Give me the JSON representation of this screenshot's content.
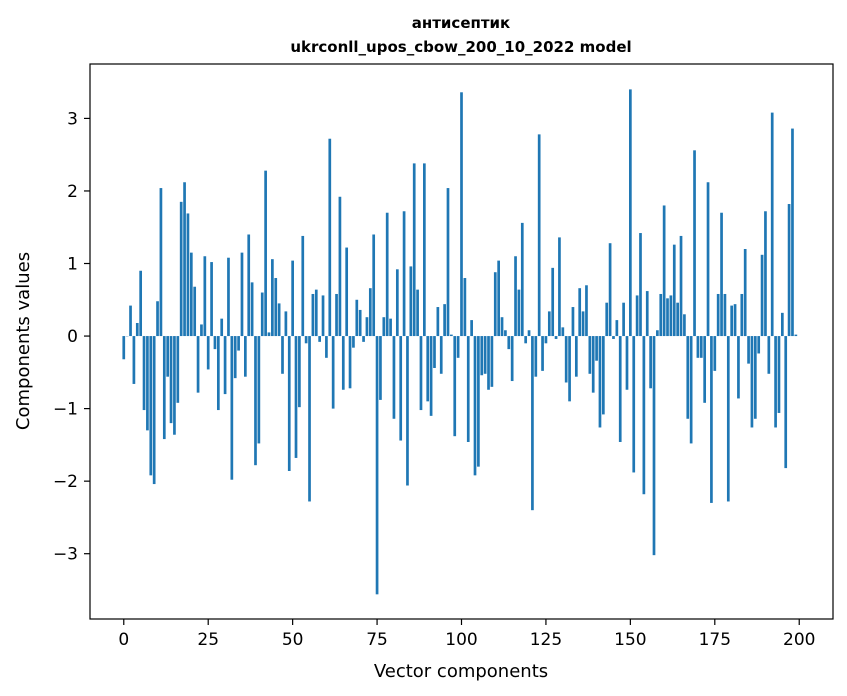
{
  "chart_data": {
    "type": "bar",
    "title": "антисептик",
    "subtitle": "ukrconll_upos_cbow_200_10_2022 model",
    "xlabel": "Vector components",
    "ylabel": "Components values",
    "xlim": [
      -10,
      210
    ],
    "ylim": [
      -3.9,
      3.75
    ],
    "xticks": [
      0,
      25,
      50,
      75,
      100,
      125,
      150,
      175,
      200
    ],
    "xtick_labels": [
      "0",
      "25",
      "50",
      "75",
      "100",
      "125",
      "150",
      "175",
      "200"
    ],
    "yticks": [
      -3,
      -2,
      -1,
      0,
      1,
      2,
      3
    ],
    "ytick_labels": [
      "−3",
      "−2",
      "−1",
      "0",
      "1",
      "2",
      "3"
    ],
    "grid": false,
    "bar_color": "#1f77b4",
    "x": [
      0,
      1,
      2,
      3,
      4,
      5,
      6,
      7,
      8,
      9,
      10,
      11,
      12,
      13,
      14,
      15,
      16,
      17,
      18,
      19,
      20,
      21,
      22,
      23,
      24,
      25,
      26,
      27,
      28,
      29,
      30,
      31,
      32,
      33,
      34,
      35,
      36,
      37,
      38,
      39,
      40,
      41,
      42,
      43,
      44,
      45,
      46,
      47,
      48,
      49,
      50,
      51,
      52,
      53,
      54,
      55,
      56,
      57,
      58,
      59,
      60,
      61,
      62,
      63,
      64,
      65,
      66,
      67,
      68,
      69,
      70,
      71,
      72,
      73,
      74,
      75,
      76,
      77,
      78,
      79,
      80,
      81,
      82,
      83,
      84,
      85,
      86,
      87,
      88,
      89,
      90,
      91,
      92,
      93,
      94,
      95,
      96,
      97,
      98,
      99,
      100,
      101,
      102,
      103,
      104,
      105,
      106,
      107,
      108,
      109,
      110,
      111,
      112,
      113,
      114,
      115,
      116,
      117,
      118,
      119,
      120,
      121,
      122,
      123,
      124,
      125,
      126,
      127,
      128,
      129,
      130,
      131,
      132,
      133,
      134,
      135,
      136,
      137,
      138,
      139,
      140,
      141,
      142,
      143,
      144,
      145,
      146,
      147,
      148,
      149,
      150,
      151,
      152,
      153,
      154,
      155,
      156,
      157,
      158,
      159,
      160,
      161,
      162,
      163,
      164,
      165,
      166,
      167,
      168,
      169,
      170,
      171,
      172,
      173,
      174,
      175,
      176,
      177,
      178,
      179,
      180,
      181,
      182,
      183,
      184,
      185,
      186,
      187,
      188,
      189,
      190,
      191,
      192,
      193,
      194,
      195,
      196,
      197,
      198,
      199
    ],
    "values": [
      -0.32,
      0.0,
      0.42,
      -0.66,
      0.18,
      0.9,
      -1.02,
      -1.3,
      -1.92,
      -2.04,
      0.48,
      2.04,
      -1.42,
      -0.56,
      -1.2,
      -1.36,
      -0.92,
      1.85,
      2.12,
      1.69,
      1.15,
      0.68,
      -0.78,
      0.16,
      1.1,
      -0.46,
      1.02,
      -0.18,
      -1.02,
      0.24,
      -0.8,
      1.08,
      -1.98,
      -0.58,
      -0.2,
      1.15,
      -0.56,
      1.4,
      0.74,
      -1.78,
      -1.48,
      0.6,
      2.28,
      0.05,
      1.06,
      0.8,
      0.45,
      -0.52,
      0.34,
      -1.86,
      1.04,
      -1.68,
      -0.98,
      1.38,
      -0.1,
      -2.28,
      0.58,
      0.64,
      -0.08,
      0.56,
      -0.3,
      2.72,
      -1.0,
      0.58,
      1.92,
      -0.74,
      1.22,
      -0.72,
      -0.16,
      0.5,
      0.36,
      -0.08,
      0.26,
      0.66,
      1.4,
      -3.56,
      -0.88,
      0.26,
      1.7,
      0.24,
      -1.14,
      0.92,
      -1.44,
      1.72,
      -2.06,
      0.96,
      2.38,
      0.64,
      -1.02,
      2.38,
      -0.9,
      -1.1,
      -0.44,
      0.4,
      -0.52,
      0.44,
      2.04,
      0.02,
      -1.38,
      -0.3,
      3.36,
      0.8,
      -1.46,
      0.22,
      -1.92,
      -1.8,
      -0.54,
      -0.52,
      -0.74,
      -0.7,
      0.88,
      1.04,
      0.26,
      0.08,
      -0.18,
      -0.62,
      1.1,
      0.64,
      1.56,
      -0.1,
      0.08,
      -2.4,
      -0.56,
      2.78,
      -0.48,
      -0.1,
      0.34,
      0.94,
      -0.04,
      1.36,
      0.12,
      -0.64,
      -0.9,
      0.4,
      -0.56,
      0.66,
      0.34,
      0.7,
      -0.52,
      -0.78,
      -0.34,
      -1.26,
      -1.08,
      0.46,
      1.28,
      -0.04,
      0.22,
      -1.46,
      0.46,
      -0.74,
      3.4,
      -1.88,
      0.56,
      1.42,
      -2.18,
      0.62,
      -0.72,
      -3.02,
      0.08,
      0.58,
      1.8,
      0.52,
      0.56,
      1.26,
      0.46,
      1.38,
      0.3,
      -1.14,
      -1.48,
      2.56,
      -0.3,
      -0.3,
      -0.92,
      2.12,
      -2.3,
      -0.48,
      0.58,
      1.7,
      0.58,
      -2.28,
      0.42,
      0.44,
      -0.86,
      0.58,
      1.2,
      -0.38,
      -1.26,
      -1.14,
      -0.24,
      1.12,
      1.72,
      -0.52,
      3.08,
      -1.26,
      -1.06,
      0.32,
      -1.82,
      1.82,
      2.86,
      0.02
    ]
  }
}
